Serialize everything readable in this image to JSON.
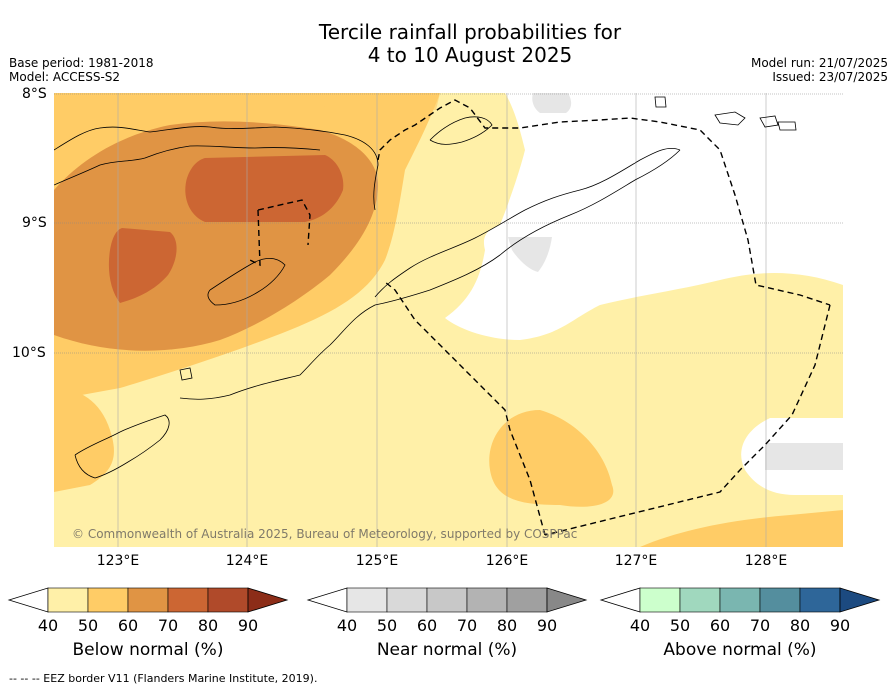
{
  "title_line1": "Tercile rainfall probabilities for",
  "title_line2": "4 to 10 August 2025",
  "base_period": "Base period: 1981-2018",
  "model": "Model: ACCESS-S2",
  "model_run": "Model run: 21/07/2025",
  "issued": "Issued: 23/07/2025",
  "lat_labels": [
    "8°S",
    "9°S",
    "10°S"
  ],
  "lon_labels": [
    "123°E",
    "124°E",
    "125°E",
    "126°E",
    "127°E",
    "128°E"
  ],
  "copyright": "© Commonwealth of Australia 2025, Bureau of Meteorology, supported by COSPPac",
  "colorbars": [
    {
      "label": "Below normal (%)",
      "ticks": [
        "40",
        "50",
        "60",
        "70",
        "80",
        "90"
      ],
      "colors": [
        "#ffffff",
        "#fff0a8",
        "#ffcc66",
        "#e09444",
        "#cc6633",
        "#b04a2a",
        "#8c2d18"
      ]
    },
    {
      "label": "Near normal (%)",
      "ticks": [
        "40",
        "50",
        "60",
        "70",
        "80",
        "90"
      ],
      "colors": [
        "#ffffff",
        "#e6e6e6",
        "#d9d9d9",
        "#c8c8c8",
        "#b3b3b3",
        "#a0a0a0",
        "#888888"
      ]
    },
    {
      "label": "Above normal (%)",
      "ticks": [
        "40",
        "50",
        "60",
        "70",
        "80",
        "90"
      ],
      "colors": [
        "#ffffff",
        "#ccffcc",
        "#a0d8be",
        "#7ab6b0",
        "#548e9e",
        "#2e6699",
        "#1c4a80"
      ]
    }
  ],
  "footer": "--  --  -- EEZ border V11 (Flanders Marine Institute, 2019)."
}
